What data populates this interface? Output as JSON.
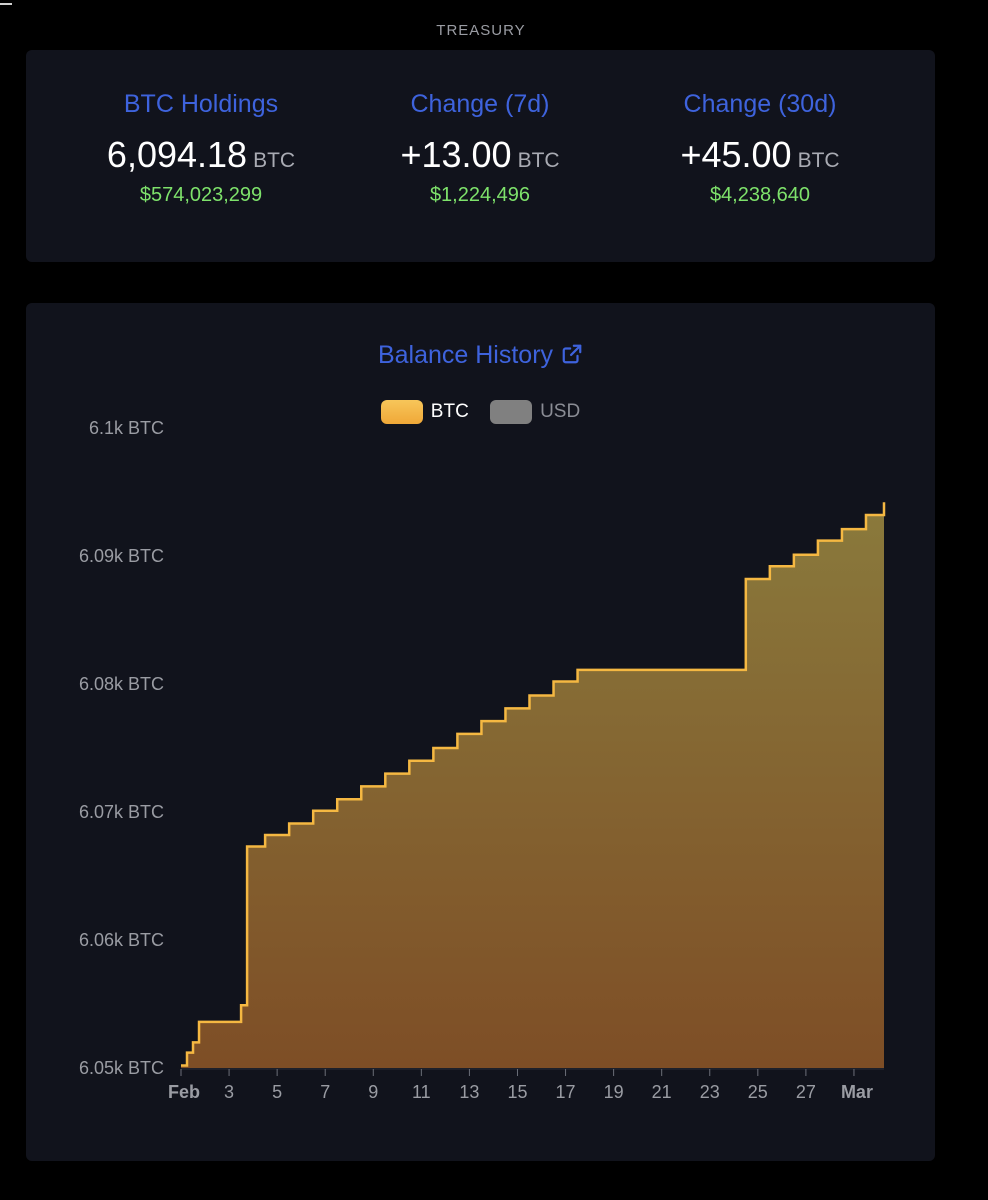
{
  "section_title": "TREASURY",
  "stats": [
    {
      "label": "BTC Holdings",
      "value": "6,094.18",
      "unit": "BTC",
      "usd": "$574,023,299"
    },
    {
      "label": "Change (7d)",
      "value": "+13.00",
      "unit": "BTC",
      "usd": "$1,224,496"
    },
    {
      "label": "Change (30d)",
      "value": "+45.00",
      "unit": "BTC",
      "usd": "$4,238,640"
    }
  ],
  "colors": {
    "accent": "#3e63dd",
    "positive": "#7ee26b",
    "line": "#f5b842",
    "legend_btc": "#f5b842",
    "legend_usd": "#808080"
  },
  "icons": {
    "title_link": "external-link-icon"
  },
  "chart_data": {
    "type": "area",
    "title": "Balance History",
    "legend": [
      {
        "name": "BTC",
        "active": true
      },
      {
        "name": "USD",
        "active": false
      }
    ],
    "legend_position": "top",
    "grid": false,
    "y_ticks": [
      "6.05k BTC",
      "6.06k BTC",
      "6.07k BTC",
      "6.08k BTC",
      "6.09k BTC",
      "6.1k BTC"
    ],
    "y_tick_values": [
      6050,
      6060,
      6070,
      6080,
      6090,
      6100
    ],
    "ylim": [
      6050,
      6100
    ],
    "x_ticks": [
      "Feb",
      "3",
      "5",
      "7",
      "9",
      "11",
      "13",
      "15",
      "17",
      "19",
      "21",
      "23",
      "25",
      "27",
      "Mar"
    ],
    "x_tick_bold": [
      "Feb",
      "Mar"
    ],
    "x_tick_dates": [
      "2025-02-01",
      "2025-02-03",
      "2025-02-05",
      "2025-02-07",
      "2025-02-09",
      "2025-02-11",
      "2025-02-13",
      "2025-02-15",
      "2025-02-17",
      "2025-02-19",
      "2025-02-21",
      "2025-02-23",
      "2025-02-25",
      "2025-02-27",
      "2025-03-01"
    ],
    "xlim": [
      "2025-02-01",
      "2025-03-02T06:00"
    ],
    "series": [
      {
        "name": "BTC",
        "step": true,
        "x": [
          "2025-02-01",
          "2025-02-01T06:00",
          "2025-02-01T12:00",
          "2025-02-01T18:00",
          "2025-02-02T12:00",
          "2025-02-03T12:00",
          "2025-02-03T18:00",
          "2025-02-04T12:00",
          "2025-02-05T12:00",
          "2025-02-06T12:00",
          "2025-02-07T12:00",
          "2025-02-08T12:00",
          "2025-02-09T12:00",
          "2025-02-10T12:00",
          "2025-02-11T12:00",
          "2025-02-12T12:00",
          "2025-02-13T12:00",
          "2025-02-14T12:00",
          "2025-02-15T12:00",
          "2025-02-16T12:00",
          "2025-02-17T12:00",
          "2025-02-18T00:00",
          "2025-02-24T12:00",
          "2025-02-25T12:00",
          "2025-02-26T12:00",
          "2025-02-27T12:00",
          "2025-02-28T12:00",
          "2025-03-01T12:00",
          "2025-03-02T06:00"
        ],
        "values": [
          6050.2,
          6051.2,
          6052.0,
          6053.6,
          6053.6,
          6054.9,
          6067.3,
          6068.2,
          6069.1,
          6070.1,
          6071.0,
          6072.0,
          6073.0,
          6074.0,
          6075.0,
          6076.1,
          6077.1,
          6078.1,
          6079.1,
          6080.2,
          6081.1,
          6081.1,
          6088.2,
          6089.2,
          6090.1,
          6091.2,
          6092.1,
          6093.2,
          6094.2
        ]
      }
    ]
  }
}
